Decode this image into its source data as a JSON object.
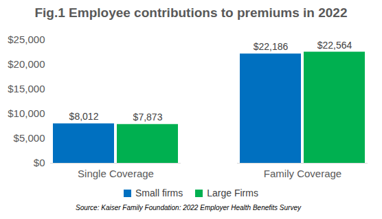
{
  "chart_data": {
    "type": "bar",
    "title": "Fig.1 Employee contributions to premiums in 2022",
    "caption": "Source: Kaiser Family Foundation: 2022 Employer Health Benefits Survey",
    "categories": [
      "Single Coverage",
      "Family Coverage"
    ],
    "series": [
      {
        "name": "Small firms",
        "color": "#0070c0",
        "values": [
          8012,
          22186
        ],
        "value_labels": [
          "$8,012",
          "$22,186"
        ]
      },
      {
        "name": "Large Firms",
        "color": "#00b050",
        "values": [
          7873,
          22564
        ],
        "value_labels": [
          "$7,873",
          "$22,564"
        ]
      }
    ],
    "ylim": [
      0,
      25000
    ],
    "yticks": [
      {
        "value": 0,
        "label": "$0"
      },
      {
        "value": 5000,
        "label": "$5,000"
      },
      {
        "value": 10000,
        "label": "$10,000"
      },
      {
        "value": 15000,
        "label": "$15,000"
      },
      {
        "value": 20000,
        "label": "$20,000"
      },
      {
        "value": 25000,
        "label": "$25,000"
      }
    ],
    "grid": false,
    "data_labels": true,
    "legend": "bottom"
  }
}
